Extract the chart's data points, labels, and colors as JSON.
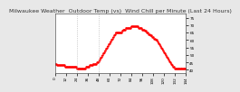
{
  "title": "Milwaukee Weather  Outdoor Temp (vs)  Wind Chill per Minute (Last 24 Hours)",
  "bg_color": "#e8e8e8",
  "plot_bg_color": "#ffffff",
  "line_color": "#ff0000",
  "line_style": ":",
  "line_width": 0.8,
  "marker": ".",
  "marker_size": 1.5,
  "y_ticks": [
    40,
    45,
    50,
    55,
    60,
    65,
    70,
    75
  ],
  "ylim": [
    38,
    78
  ],
  "xlim": [
    0,
    144
  ],
  "vlines": [
    24,
    48
  ],
  "vline_color": "#aaaaaa",
  "vline_style": ":",
  "y_data": [
    44,
    44,
    43,
    43,
    43,
    43,
    43,
    43,
    43,
    43,
    43,
    42,
    42,
    42,
    42,
    42,
    42,
    42,
    42,
    42,
    42,
    42,
    42,
    42,
    41,
    41,
    41,
    41,
    41,
    41,
    41,
    41,
    41,
    41,
    42,
    42,
    42,
    42,
    43,
    43,
    43,
    43,
    44,
    44,
    44,
    44,
    45,
    45,
    46,
    47,
    48,
    49,
    50,
    51,
    52,
    53,
    54,
    55,
    56,
    57,
    58,
    59,
    60,
    61,
    62,
    63,
    64,
    65,
    65,
    65,
    65,
    65,
    65,
    65,
    66,
    67,
    67,
    67,
    68,
    68,
    68,
    68,
    68,
    68,
    69,
    69,
    69,
    69,
    69,
    69,
    69,
    69,
    68,
    68,
    68,
    68,
    67,
    67,
    67,
    66,
    66,
    65,
    65,
    64,
    64,
    63,
    63,
    62,
    62,
    61,
    61,
    60,
    60,
    59,
    58,
    57,
    56,
    55,
    54,
    53,
    52,
    51,
    50,
    49,
    48,
    47,
    46,
    45,
    44,
    43,
    42,
    42,
    41,
    41,
    41,
    41,
    41,
    41,
    41,
    41,
    41,
    41,
    41,
    41,
    41
  ],
  "title_fontsize": 4.5,
  "tick_fontsize": 3.0,
  "title_color": "#333333"
}
